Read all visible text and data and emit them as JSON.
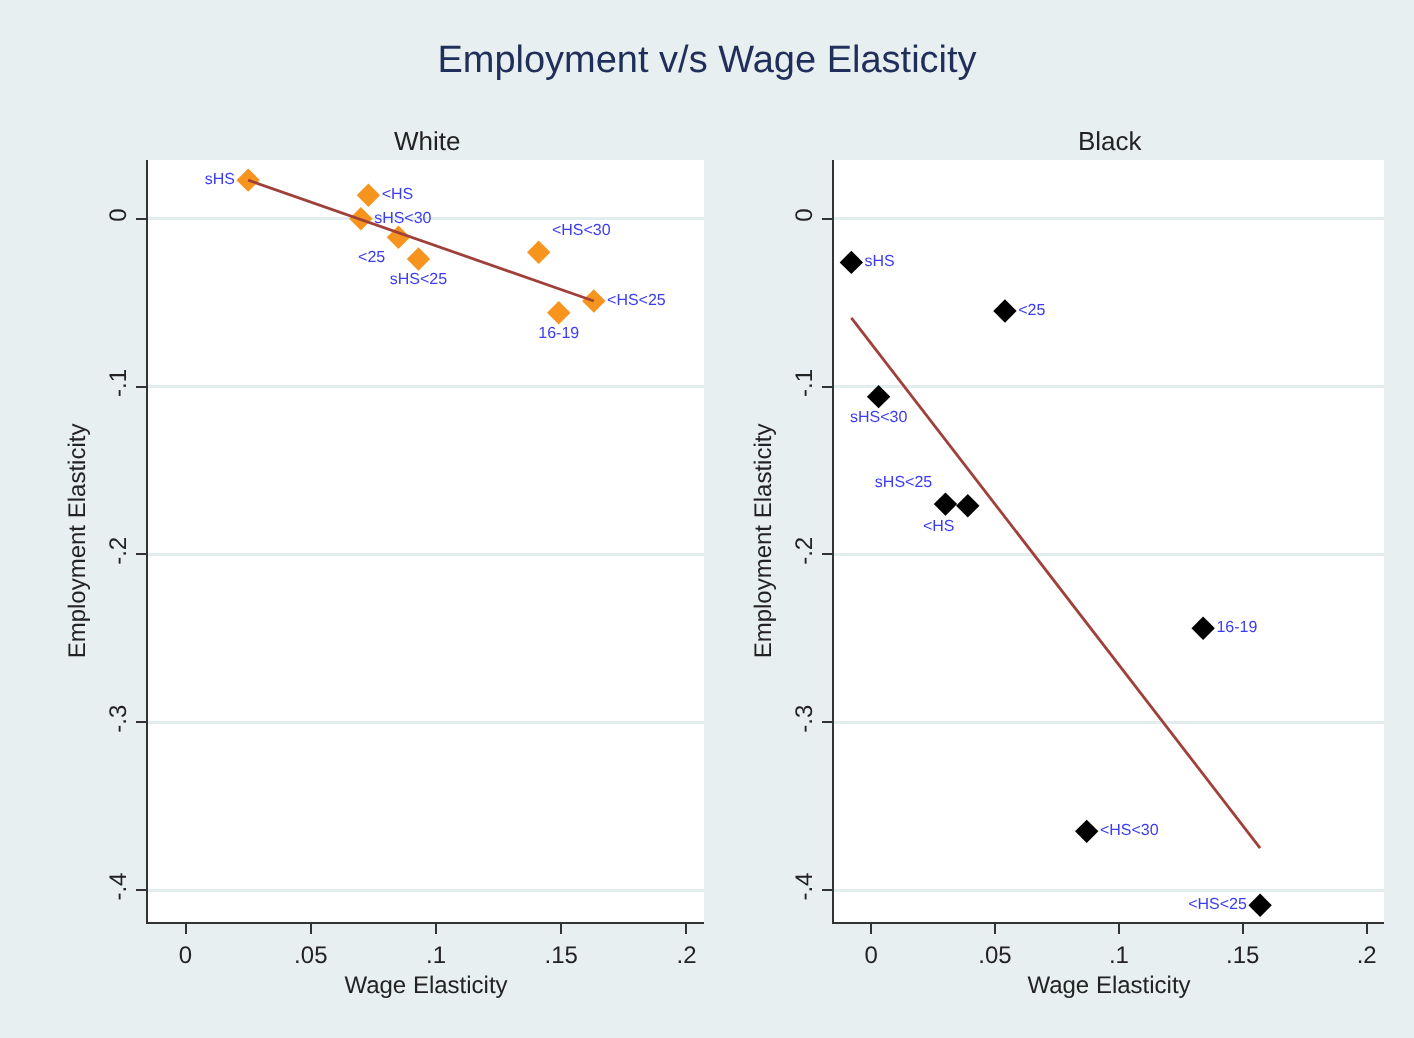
{
  "chart_data": [
    {
      "type": "scatter",
      "title": "Employment v/s Wage Elasticity",
      "subtitle": "White",
      "xlabel": "Wage Elasticity",
      "ylabel": "Employment Elasticity",
      "xlim": [
        -0.015,
        0.207
      ],
      "ylim": [
        -0.419,
        0.035
      ],
      "xticks": [
        0,
        {
          "value": 0.05,
          "label": ".05"
        },
        {
          "value": 0.1,
          "label": ".1"
        },
        {
          "value": 0.15,
          "label": ".15"
        },
        {
          "value": 0.2,
          "label": ".2"
        }
      ],
      "yticks": [
        0,
        {
          "value": -0.1,
          "label": "-.1"
        },
        {
          "value": -0.2,
          "label": "-.2"
        },
        {
          "value": -0.3,
          "label": "-.3"
        },
        {
          "value": -0.4,
          "label": "-.4"
        }
      ],
      "grid": "y",
      "series": [
        {
          "marker": "diamond",
          "color": "#f7941d",
          "x": [
            0.025,
            0.073,
            0.07,
            0.085,
            0.093,
            0.141,
            0.163,
            0.149
          ],
          "values": [
            0.023,
            0.014,
            0.0,
            -0.011,
            -0.024,
            -0.02,
            -0.049,
            -0.056
          ],
          "value_labels": [
            "sHS",
            "<HS",
            "sHS<30",
            "<25",
            "sHS<25",
            "<HS<30",
            "<HS<25",
            "16-19"
          ]
        },
        {
          "type": "line",
          "color": "#a0403a",
          "x": [
            0.025,
            0.163
          ],
          "values": [
            0.023,
            -0.049
          ]
        }
      ]
    },
    {
      "type": "scatter",
      "subtitle": "Black",
      "xlabel": "Wage Elasticity",
      "ylabel": "Employment Elasticity",
      "xlim": [
        -0.015,
        0.207
      ],
      "ylim": [
        -0.419,
        0.035
      ],
      "xticks": [
        0,
        {
          "value": 0.05,
          "label": ".05"
        },
        {
          "value": 0.1,
          "label": ".1"
        },
        {
          "value": 0.15,
          "label": ".15"
        },
        {
          "value": 0.2,
          "label": ".2"
        }
      ],
      "yticks": [
        0,
        {
          "value": -0.1,
          "label": "-.1"
        },
        {
          "value": -0.2,
          "label": "-.2"
        },
        {
          "value": -0.3,
          "label": "-.3"
        },
        {
          "value": -0.4,
          "label": "-.4"
        }
      ],
      "grid": "y",
      "series": [
        {
          "marker": "diamond",
          "color": "#000000",
          "x": [
            -0.008,
            0.054,
            0.003,
            0.03,
            0.039,
            0.134,
            0.087,
            0.157
          ],
          "values": [
            -0.026,
            -0.055,
            -0.106,
            -0.17,
            -0.171,
            -0.244,
            -0.365,
            -0.409
          ],
          "value_labels": [
            "sHS",
            "<25",
            "sHS<30",
            "sHS<25",
            "<HS",
            "16-19",
            "<HS<30",
            "<HS<25"
          ]
        },
        {
          "type": "line",
          "color": "#a0403a",
          "x": [
            -0.008,
            0.157
          ],
          "values": [
            -0.059,
            -0.375
          ]
        }
      ]
    }
  ]
}
